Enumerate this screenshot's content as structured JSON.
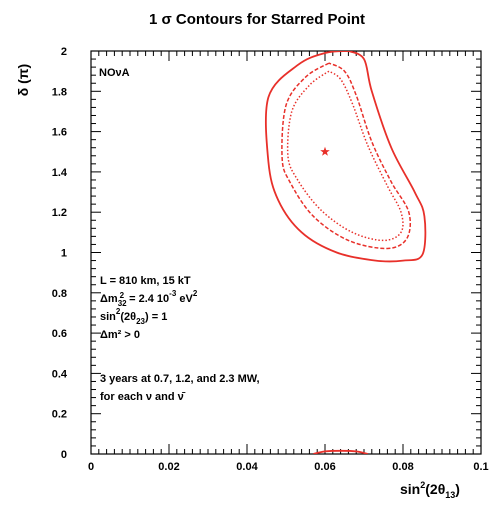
{
  "chart_data": {
    "type": "contour",
    "title": "1 σ Contours for Starred Point",
    "xlabel": "sin²(2θ₁₃)",
    "ylabel": "δ (π)",
    "xlim": [
      0,
      0.1
    ],
    "ylim": [
      0,
      2
    ],
    "x_ticks": [
      {
        "value": 0,
        "label": "0"
      },
      {
        "value": 0.02,
        "label": "0.02"
      },
      {
        "value": 0.04,
        "label": "0.04"
      },
      {
        "value": 0.06,
        "label": "0.06"
      },
      {
        "value": 0.08,
        "label": "0.08"
      },
      {
        "value": 0.1,
        "label": "0.1"
      }
    ],
    "y_ticks": [
      {
        "value": 0,
        "label": "0"
      },
      {
        "value": 0.2,
        "label": "0.2"
      },
      {
        "value": 0.4,
        "label": "0.4"
      },
      {
        "value": 0.6,
        "label": "0.6"
      },
      {
        "value": 0.8,
        "label": "0.8"
      },
      {
        "value": 1,
        "label": "1"
      },
      {
        "value": 1.2,
        "label": "1.2"
      },
      {
        "value": 1.4,
        "label": "1.4"
      },
      {
        "value": 1.6,
        "label": "1.6"
      },
      {
        "value": 1.8,
        "label": "1.8"
      },
      {
        "value": 2,
        "label": "2"
      }
    ],
    "grid": false,
    "color": "#e8302a",
    "star_point": {
      "x": 0.06,
      "y": 1.5
    },
    "contours": [
      {
        "style": "solid",
        "points": [
          [
            0.066,
            2.0
          ],
          [
            0.06,
            1.99
          ],
          [
            0.053,
            1.93
          ],
          [
            0.0455,
            1.77
          ],
          [
            0.0455,
            1.45
          ],
          [
            0.048,
            1.26
          ],
          [
            0.054,
            1.1
          ],
          [
            0.063,
            1.0
          ],
          [
            0.073,
            0.96
          ],
          [
            0.08,
            0.96
          ],
          [
            0.085,
            0.99
          ],
          [
            0.0855,
            1.18
          ],
          [
            0.083,
            1.3
          ],
          [
            0.077,
            1.52
          ],
          [
            0.072,
            1.8
          ],
          [
            0.07,
            1.96
          ],
          [
            0.066,
            2.0
          ]
        ]
      },
      {
        "style": "dashed",
        "points": [
          [
            0.061,
            1.94
          ],
          [
            0.055,
            1.87
          ],
          [
            0.05,
            1.73
          ],
          [
            0.049,
            1.47
          ],
          [
            0.051,
            1.35
          ],
          [
            0.057,
            1.18
          ],
          [
            0.066,
            1.06
          ],
          [
            0.076,
            1.02
          ],
          [
            0.081,
            1.07
          ],
          [
            0.0815,
            1.2
          ],
          [
            0.077,
            1.35
          ],
          [
            0.072,
            1.55
          ],
          [
            0.068,
            1.78
          ],
          [
            0.065,
            1.9
          ],
          [
            0.061,
            1.94
          ]
        ]
      },
      {
        "style": "dotted",
        "points": [
          [
            0.061,
            1.9
          ],
          [
            0.056,
            1.83
          ],
          [
            0.0515,
            1.7
          ],
          [
            0.0505,
            1.48
          ],
          [
            0.053,
            1.36
          ],
          [
            0.059,
            1.21
          ],
          [
            0.067,
            1.1
          ],
          [
            0.075,
            1.06
          ],
          [
            0.0795,
            1.1
          ],
          [
            0.0795,
            1.2
          ],
          [
            0.076,
            1.33
          ],
          [
            0.071,
            1.53
          ],
          [
            0.067,
            1.74
          ],
          [
            0.064,
            1.86
          ],
          [
            0.061,
            1.9
          ]
        ]
      },
      {
        "style": "solid",
        "points": [
          [
            0.057,
            0.0
          ],
          [
            0.06,
            0.013
          ],
          [
            0.064,
            0.016
          ],
          [
            0.068,
            0.013
          ],
          [
            0.071,
            0.0
          ]
        ]
      }
    ],
    "annotations": {
      "experiment": "NOνA",
      "baseline": "L = 810 km, 15 kT",
      "dm32_main": "Δm",
      "dm32_sub": "32",
      "dm32_mid": "2",
      "dm32_value": " = 2.4 10",
      "dm32_exp": "-3",
      "dm32_unit": " eV",
      "dm32_unit_sup": "2",
      "sin_main": "sin",
      "sin_sup": "2",
      "sin_mid": "(2θ",
      "sin_sub": "23",
      "sin_end": ") = 1",
      "hierarchy": "Δm² > 0",
      "exposure": "3 years at 0.7, 1.2, and 2.3 MW,",
      "beams": "for each ν and ν̄"
    },
    "xlabel_parts": {
      "main": "sin",
      "sup": "2",
      "mid": "(2θ",
      "sub": "13",
      "end": ")"
    }
  }
}
